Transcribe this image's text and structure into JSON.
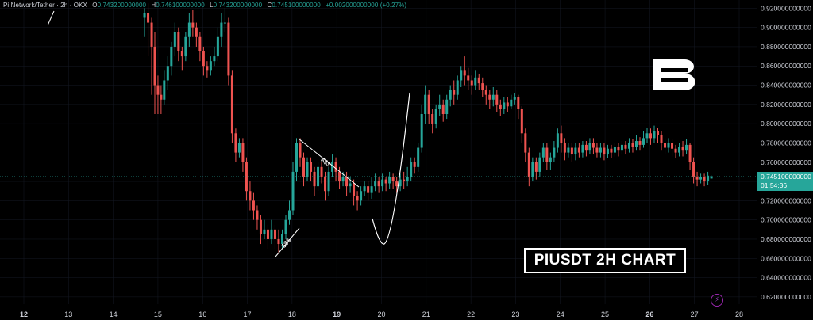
{
  "header": {
    "symbol": "Pi Network/Tether · 2h · OKX",
    "open_label": "O",
    "open": "0.743200000000",
    "high_label": "H",
    "high": "0.746100000000",
    "low_label": "L",
    "low": "0.743200000000",
    "close_label": "C",
    "close": "0.745100000000",
    "change": "+0.002000000000 (+0.27%)"
  },
  "price_tag": {
    "price": "0.745100000000",
    "countdown": "01:54:36"
  },
  "overlay_label": "PIUSDT 2H CHART",
  "annotations": [
    "$$$",
    "$$$"
  ],
  "colors": {
    "up": "#26a69a",
    "down": "#ef5350",
    "background": "#000000",
    "grid": "#151924"
  },
  "icons": [
    "brand-logo-icon",
    "lightning-icon"
  ],
  "chart_data": {
    "type": "candlestick",
    "title": "",
    "x_ticks": [
      "12",
      "13",
      "14",
      "15",
      "16",
      "17",
      "18",
      "19",
      "20",
      "21",
      "22",
      "23",
      "24",
      "25",
      "26",
      "27",
      "28"
    ],
    "y_ticks": [
      "0.920000000000",
      "0.900000000000",
      "0.880000000000",
      "0.860000000000",
      "0.840000000000",
      "0.820000000000",
      "0.800000000000",
      "0.780000000000",
      "0.760000000000",
      "0.740000000000",
      "0.720000000000",
      "0.700000000000",
      "0.680000000000",
      "0.660000000000",
      "0.640000000000",
      "0.620000000000"
    ],
    "ylim": [
      0.6125,
      0.9285
    ],
    "xlim": [
      12,
      28
    ],
    "last_price": 0.7451,
    "candles": [
      [
        14.7,
        0.91,
        0.915,
        0.89,
        0.92
      ],
      [
        14.78,
        0.915,
        0.905,
        0.87,
        0.925
      ],
      [
        14.86,
        0.905,
        0.88,
        0.83,
        0.91
      ],
      [
        14.93,
        0.88,
        0.84,
        0.81,
        0.895
      ],
      [
        15.0,
        0.84,
        0.83,
        0.81,
        0.85
      ],
      [
        15.07,
        0.83,
        0.825,
        0.81,
        0.84
      ],
      [
        15.14,
        0.825,
        0.845,
        0.82,
        0.855
      ],
      [
        15.22,
        0.845,
        0.86,
        0.835,
        0.87
      ],
      [
        15.3,
        0.86,
        0.88,
        0.85,
        0.885
      ],
      [
        15.38,
        0.88,
        0.895,
        0.87,
        0.905
      ],
      [
        15.46,
        0.895,
        0.875,
        0.865,
        0.9
      ],
      [
        15.54,
        0.875,
        0.87,
        0.855,
        0.88
      ],
      [
        15.62,
        0.87,
        0.89,
        0.865,
        0.895
      ],
      [
        15.7,
        0.89,
        0.905,
        0.88,
        0.915
      ],
      [
        15.78,
        0.905,
        0.9,
        0.89,
        0.918
      ],
      [
        15.86,
        0.9,
        0.89,
        0.88,
        0.905
      ],
      [
        15.94,
        0.89,
        0.875,
        0.865,
        0.895
      ],
      [
        16.02,
        0.875,
        0.86,
        0.85,
        0.88
      ],
      [
        16.1,
        0.86,
        0.855,
        0.848,
        0.865
      ],
      [
        16.18,
        0.855,
        0.865,
        0.85,
        0.87
      ],
      [
        16.26,
        0.865,
        0.87,
        0.86,
        0.88
      ],
      [
        16.34,
        0.87,
        0.89,
        0.865,
        0.9
      ],
      [
        16.42,
        0.89,
        0.905,
        0.88,
        0.915
      ],
      [
        16.5,
        0.905,
        0.905,
        0.895,
        0.92
      ],
      [
        16.58,
        0.905,
        0.85,
        0.84,
        0.91
      ],
      [
        16.66,
        0.85,
        0.79,
        0.78,
        0.855
      ],
      [
        16.74,
        0.79,
        0.77,
        0.76,
        0.795
      ],
      [
        16.82,
        0.77,
        0.78,
        0.765,
        0.785
      ],
      [
        16.9,
        0.78,
        0.76,
        0.75,
        0.785
      ],
      [
        16.98,
        0.76,
        0.73,
        0.72,
        0.765
      ],
      [
        17.06,
        0.73,
        0.72,
        0.71,
        0.74
      ],
      [
        17.14,
        0.72,
        0.71,
        0.7,
        0.728
      ],
      [
        17.22,
        0.71,
        0.7,
        0.69,
        0.715
      ],
      [
        17.3,
        0.7,
        0.685,
        0.675,
        0.705
      ],
      [
        17.38,
        0.685,
        0.69,
        0.68,
        0.7
      ],
      [
        17.46,
        0.69,
        0.68,
        0.67,
        0.695
      ],
      [
        17.54,
        0.68,
        0.69,
        0.675,
        0.7
      ],
      [
        17.62,
        0.69,
        0.68,
        0.67,
        0.695
      ],
      [
        17.7,
        0.68,
        0.675,
        0.665,
        0.69
      ],
      [
        17.78,
        0.675,
        0.685,
        0.67,
        0.69
      ],
      [
        17.86,
        0.685,
        0.7,
        0.68,
        0.705
      ],
      [
        17.94,
        0.7,
        0.71,
        0.695,
        0.72
      ],
      [
        18.02,
        0.71,
        0.75,
        0.705,
        0.76
      ],
      [
        18.1,
        0.75,
        0.78,
        0.74,
        0.785
      ],
      [
        18.18,
        0.78,
        0.765,
        0.755,
        0.785
      ],
      [
        18.26,
        0.765,
        0.745,
        0.735,
        0.77
      ],
      [
        18.34,
        0.745,
        0.76,
        0.74,
        0.765
      ],
      [
        18.42,
        0.76,
        0.75,
        0.74,
        0.765
      ],
      [
        18.5,
        0.75,
        0.735,
        0.725,
        0.755
      ],
      [
        18.58,
        0.735,
        0.755,
        0.73,
        0.76
      ],
      [
        18.66,
        0.755,
        0.745,
        0.738,
        0.76
      ],
      [
        18.74,
        0.745,
        0.73,
        0.72,
        0.75
      ],
      [
        18.82,
        0.73,
        0.75,
        0.725,
        0.755
      ],
      [
        18.9,
        0.75,
        0.76,
        0.745,
        0.768
      ],
      [
        18.98,
        0.76,
        0.75,
        0.74,
        0.765
      ],
      [
        19.06,
        0.75,
        0.74,
        0.732,
        0.755
      ],
      [
        19.14,
        0.74,
        0.745,
        0.735,
        0.75
      ],
      [
        19.22,
        0.745,
        0.735,
        0.725,
        0.75
      ],
      [
        19.3,
        0.735,
        0.738,
        0.728,
        0.745
      ],
      [
        19.38,
        0.738,
        0.725,
        0.715,
        0.742
      ],
      [
        19.46,
        0.725,
        0.72,
        0.71,
        0.73
      ],
      [
        19.54,
        0.72,
        0.73,
        0.715,
        0.735
      ],
      [
        19.62,
        0.73,
        0.735,
        0.725,
        0.74
      ],
      [
        19.7,
        0.735,
        0.728,
        0.72,
        0.74
      ],
      [
        19.78,
        0.728,
        0.735,
        0.722,
        0.745
      ],
      [
        19.86,
        0.735,
        0.74,
        0.73,
        0.748
      ],
      [
        19.94,
        0.74,
        0.735,
        0.728,
        0.745
      ],
      [
        20.02,
        0.735,
        0.742,
        0.73,
        0.748
      ],
      [
        20.1,
        0.742,
        0.738,
        0.73,
        0.745
      ],
      [
        20.18,
        0.738,
        0.745,
        0.732,
        0.75
      ],
      [
        20.26,
        0.745,
        0.74,
        0.732,
        0.748
      ],
      [
        20.34,
        0.74,
        0.735,
        0.728,
        0.745
      ],
      [
        20.42,
        0.735,
        0.742,
        0.73,
        0.748
      ],
      [
        20.5,
        0.742,
        0.74,
        0.732,
        0.75
      ],
      [
        20.58,
        0.74,
        0.745,
        0.735,
        0.755
      ],
      [
        20.66,
        0.745,
        0.76,
        0.74,
        0.765
      ],
      [
        20.74,
        0.76,
        0.755,
        0.748,
        0.765
      ],
      [
        20.82,
        0.755,
        0.775,
        0.75,
        0.78
      ],
      [
        20.9,
        0.775,
        0.81,
        0.77,
        0.82
      ],
      [
        20.98,
        0.81,
        0.83,
        0.8,
        0.84
      ],
      [
        21.06,
        0.83,
        0.81,
        0.8,
        0.835
      ],
      [
        21.14,
        0.81,
        0.8,
        0.79,
        0.815
      ],
      [
        21.22,
        0.8,
        0.815,
        0.795,
        0.82
      ],
      [
        21.3,
        0.815,
        0.82,
        0.808,
        0.83
      ],
      [
        21.38,
        0.82,
        0.81,
        0.802,
        0.825
      ],
      [
        21.46,
        0.81,
        0.825,
        0.805,
        0.83
      ],
      [
        21.54,
        0.825,
        0.835,
        0.818,
        0.84
      ],
      [
        21.62,
        0.835,
        0.83,
        0.82,
        0.845
      ],
      [
        21.7,
        0.83,
        0.845,
        0.825,
        0.85
      ],
      [
        21.78,
        0.845,
        0.855,
        0.838,
        0.86
      ],
      [
        21.86,
        0.855,
        0.85,
        0.84,
        0.87
      ],
      [
        21.94,
        0.85,
        0.845,
        0.835,
        0.858
      ],
      [
        22.02,
        0.845,
        0.84,
        0.83,
        0.85
      ],
      [
        22.1,
        0.84,
        0.848,
        0.835,
        0.855
      ],
      [
        22.18,
        0.848,
        0.842,
        0.835,
        0.852
      ],
      [
        22.26,
        0.842,
        0.835,
        0.828,
        0.848
      ],
      [
        22.34,
        0.835,
        0.83,
        0.82,
        0.84
      ],
      [
        22.42,
        0.83,
        0.825,
        0.815,
        0.835
      ],
      [
        22.5,
        0.825,
        0.83,
        0.818,
        0.838
      ],
      [
        22.58,
        0.83,
        0.82,
        0.812,
        0.835
      ],
      [
        22.66,
        0.82,
        0.815,
        0.808,
        0.825
      ],
      [
        22.74,
        0.815,
        0.822,
        0.81,
        0.828
      ],
      [
        22.82,
        0.822,
        0.818,
        0.812,
        0.828
      ],
      [
        22.9,
        0.818,
        0.825,
        0.815,
        0.83
      ],
      [
        22.98,
        0.825,
        0.828,
        0.82,
        0.832
      ],
      [
        23.06,
        0.828,
        0.815,
        0.805,
        0.83
      ],
      [
        23.14,
        0.815,
        0.79,
        0.78,
        0.818
      ],
      [
        23.22,
        0.79,
        0.77,
        0.76,
        0.795
      ],
      [
        23.3,
        0.77,
        0.745,
        0.735,
        0.775
      ],
      [
        23.38,
        0.745,
        0.76,
        0.74,
        0.765
      ],
      [
        23.46,
        0.76,
        0.75,
        0.742,
        0.765
      ],
      [
        23.54,
        0.75,
        0.765,
        0.745,
        0.77
      ],
      [
        23.62,
        0.765,
        0.775,
        0.76,
        0.78
      ],
      [
        23.7,
        0.775,
        0.76,
        0.752,
        0.78
      ],
      [
        23.78,
        0.76,
        0.765,
        0.752,
        0.77
      ],
      [
        23.86,
        0.765,
        0.775,
        0.76,
        0.782
      ],
      [
        23.94,
        0.775,
        0.79,
        0.77,
        0.795
      ],
      [
        24.02,
        0.79,
        0.78,
        0.77,
        0.798
      ],
      [
        24.1,
        0.78,
        0.77,
        0.762,
        0.785
      ],
      [
        24.18,
        0.77,
        0.775,
        0.765,
        0.78
      ],
      [
        24.26,
        0.775,
        0.768,
        0.76,
        0.78
      ],
      [
        24.34,
        0.768,
        0.775,
        0.762,
        0.78
      ],
      [
        24.42,
        0.775,
        0.77,
        0.765,
        0.78
      ],
      [
        24.5,
        0.77,
        0.778,
        0.765,
        0.782
      ],
      [
        24.58,
        0.778,
        0.772,
        0.766,
        0.782
      ],
      [
        24.66,
        0.772,
        0.78,
        0.768,
        0.785
      ],
      [
        24.74,
        0.78,
        0.775,
        0.768,
        0.785
      ],
      [
        24.82,
        0.775,
        0.77,
        0.765,
        0.78
      ],
      [
        24.9,
        0.77,
        0.775,
        0.765,
        0.78
      ],
      [
        24.98,
        0.775,
        0.768,
        0.762,
        0.78
      ],
      [
        25.06,
        0.768,
        0.774,
        0.764,
        0.778
      ],
      [
        25.14,
        0.774,
        0.77,
        0.764,
        0.778
      ],
      [
        25.22,
        0.77,
        0.776,
        0.766,
        0.78
      ],
      [
        25.3,
        0.776,
        0.772,
        0.766,
        0.78
      ],
      [
        25.38,
        0.772,
        0.778,
        0.768,
        0.782
      ],
      [
        25.46,
        0.778,
        0.774,
        0.768,
        0.782
      ],
      [
        25.54,
        0.774,
        0.78,
        0.77,
        0.785
      ],
      [
        25.62,
        0.78,
        0.776,
        0.77,
        0.784
      ],
      [
        25.7,
        0.776,
        0.782,
        0.772,
        0.788
      ],
      [
        25.78,
        0.782,
        0.778,
        0.772,
        0.786
      ],
      [
        25.86,
        0.778,
        0.785,
        0.775,
        0.792
      ],
      [
        25.94,
        0.785,
        0.79,
        0.78,
        0.796
      ],
      [
        26.02,
        0.79,
        0.785,
        0.778,
        0.795
      ],
      [
        26.1,
        0.785,
        0.792,
        0.78,
        0.798
      ],
      [
        26.18,
        0.792,
        0.788,
        0.78,
        0.796
      ],
      [
        26.26,
        0.788,
        0.78,
        0.772,
        0.792
      ],
      [
        26.34,
        0.78,
        0.775,
        0.768,
        0.785
      ],
      [
        26.42,
        0.775,
        0.78,
        0.77,
        0.785
      ],
      [
        26.5,
        0.78,
        0.774,
        0.766,
        0.784
      ],
      [
        26.58,
        0.774,
        0.77,
        0.764,
        0.778
      ],
      [
        26.66,
        0.77,
        0.776,
        0.766,
        0.78
      ],
      [
        26.74,
        0.776,
        0.772,
        0.766,
        0.782
      ],
      [
        26.82,
        0.772,
        0.778,
        0.768,
        0.784
      ],
      [
        26.9,
        0.778,
        0.76,
        0.752,
        0.78
      ],
      [
        26.98,
        0.76,
        0.745,
        0.738,
        0.765
      ],
      [
        27.06,
        0.745,
        0.742,
        0.735,
        0.75
      ],
      [
        27.14,
        0.742,
        0.745,
        0.738,
        0.748
      ],
      [
        27.22,
        0.745,
        0.74,
        0.735,
        0.748
      ],
      [
        27.3,
        0.74,
        0.746,
        0.736,
        0.75
      ],
      [
        27.38,
        0.743,
        0.745,
        0.743,
        0.746
      ]
    ]
  }
}
